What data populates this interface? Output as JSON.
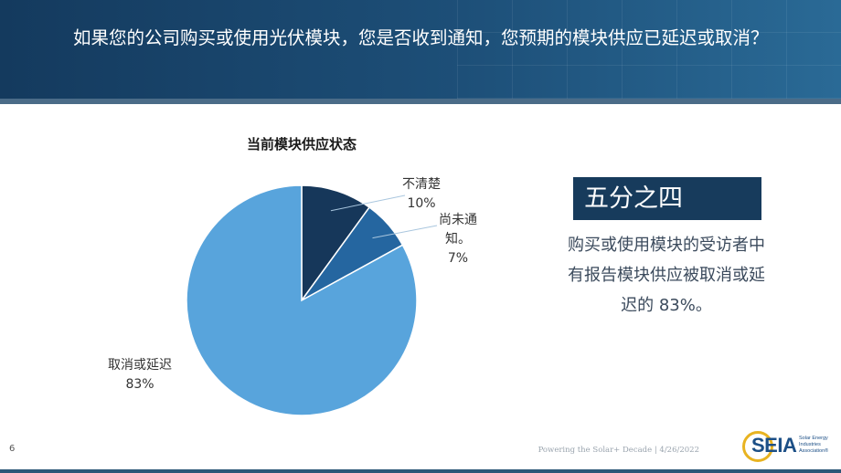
{
  "slide": {
    "title": "如果您的公司购买或使用光伏模块，您是否收到通知，您预期的模块供应已延迟或取消？",
    "page_number": "6",
    "footer": "Powering the Solar+ Decade | 4/26/2022"
  },
  "callout": {
    "headline": "五分之四",
    "text": "购买或使用模块的受访者中有报告模块供应被取消或延迟的 83%。"
  },
  "logo": {
    "word": "SEIA",
    "sub": "Solar Energy Industries Association®"
  },
  "chart_data": {
    "type": "pie",
    "title": "当前模块供应状态",
    "slices": [
      {
        "label": "不清楚",
        "value": 10,
        "value_label": "10%",
        "color": "#16375a"
      },
      {
        "label": "尚未通知。",
        "value": 7,
        "value_label": "7%",
        "color": "#2566a0"
      },
      {
        "label": "取消或延迟",
        "value": 83,
        "value_label": "83%",
        "color": "#58a4dc"
      }
    ],
    "start_angle_deg": 0,
    "direction": "clockwise",
    "legend": "none"
  },
  "colors": {
    "header": "#1d4f78",
    "callout_box": "#173b5c",
    "accent_gold": "#e8b321"
  }
}
